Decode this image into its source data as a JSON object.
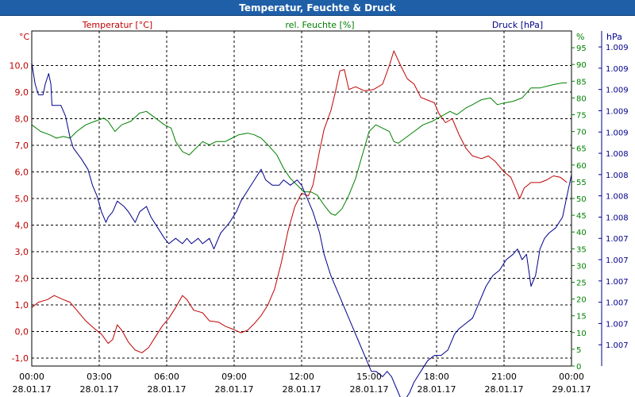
{
  "window": {
    "title": "Temperatur, Feuchte & Druck"
  },
  "chart_data": {
    "type": "line",
    "title": "Temperatur, Feuchte & Druck",
    "x_ticks": [
      {
        "time": "00:00",
        "date": "28.01.17",
        "hour": 0
      },
      {
        "time": "03:00",
        "date": "28.01.17",
        "hour": 3
      },
      {
        "time": "06:00",
        "date": "28.01.17",
        "hour": 6
      },
      {
        "time": "09:00",
        "date": "28.01.17",
        "hour": 9
      },
      {
        "time": "12:00",
        "date": "28.01.17",
        "hour": 12
      },
      {
        "time": "15:00",
        "date": "28.01.17",
        "hour": 15
      },
      {
        "time": "18:00",
        "date": "28.01.17",
        "hour": 18
      },
      {
        "time": "21:00",
        "date": "28.01.17",
        "hour": 21
      },
      {
        "time": "00:00",
        "date": "29.01.17",
        "hour": 24
      }
    ],
    "x_range": [
      0,
      24
    ],
    "axes": {
      "temperature": {
        "label": "Temperatur [°C]",
        "unit": "°C",
        "color": "#c00000",
        "range": [
          -1.3,
          11.3
        ],
        "ticks": [
          "-1,0",
          "0,0",
          "1,0",
          "2,0",
          "3,0",
          "4,0",
          "5,0",
          "6,0",
          "7,0",
          "8,0",
          "9,0",
          "10,0"
        ],
        "tick_values": [
          -1,
          0,
          1,
          2,
          3,
          4,
          5,
          6,
          7,
          8,
          9,
          10
        ]
      },
      "humidity": {
        "label": "rel. Feuchte [%]",
        "unit": "%",
        "color": "#008000",
        "range": [
          0,
          100
        ],
        "ticks": [
          "0",
          "5",
          "10",
          "15",
          "20",
          "25",
          "30",
          "35",
          "40",
          "45",
          "50",
          "55",
          "60",
          "65",
          "70",
          "75",
          "80",
          "85",
          "90",
          "95"
        ],
        "tick_values": [
          0,
          5,
          10,
          15,
          20,
          25,
          30,
          35,
          40,
          45,
          50,
          55,
          60,
          65,
          70,
          75,
          80,
          85,
          90,
          95
        ]
      },
      "pressure": {
        "label": "Druck [hPa]",
        "unit": "hPa",
        "color": "#00008b",
        "range": [
          1006.45,
          1009.6
        ],
        "ticks": [
          "1.007",
          "1.007",
          "1.007",
          "1.007",
          "1.007",
          "1.007",
          "1.008",
          "1.008",
          "1.008",
          "1.008",
          "1.009",
          "1.009",
          "1.009",
          "1.009",
          "1.009"
        ],
        "tick_values": [
          1006.65,
          1006.85,
          1007.05,
          1007.25,
          1007.45,
          1007.65,
          1007.85,
          1008.05,
          1008.25,
          1008.45,
          1008.65,
          1008.85,
          1009.05,
          1009.25,
          1009.45
        ]
      }
    },
    "series": [
      {
        "name": "Temperatur",
        "axis": "temperature",
        "color": "#c00000",
        "points": [
          [
            0,
            0.9
          ],
          [
            0.3,
            1.1
          ],
          [
            0.7,
            1.2
          ],
          [
            1.0,
            1.35
          ],
          [
            1.4,
            1.2
          ],
          [
            1.7,
            1.1
          ],
          [
            2.0,
            0.8
          ],
          [
            2.4,
            0.4
          ],
          [
            2.8,
            0.1
          ],
          [
            3.1,
            -0.1
          ],
          [
            3.4,
            -0.45
          ],
          [
            3.6,
            -0.3
          ],
          [
            3.8,
            0.25
          ],
          [
            4.0,
            0.05
          ],
          [
            4.3,
            -0.4
          ],
          [
            4.6,
            -0.7
          ],
          [
            4.9,
            -0.8
          ],
          [
            5.2,
            -0.6
          ],
          [
            5.5,
            -0.2
          ],
          [
            5.8,
            0.2
          ],
          [
            6.1,
            0.5
          ],
          [
            6.4,
            0.9
          ],
          [
            6.7,
            1.35
          ],
          [
            6.9,
            1.2
          ],
          [
            7.2,
            0.8
          ],
          [
            7.6,
            0.7
          ],
          [
            7.9,
            0.4
          ],
          [
            8.3,
            0.35
          ],
          [
            8.6,
            0.2
          ],
          [
            8.9,
            0.1
          ],
          [
            9.3,
            -0.05
          ],
          [
            9.6,
            0.05
          ],
          [
            9.9,
            0.3
          ],
          [
            10.2,
            0.6
          ],
          [
            10.5,
            1.0
          ],
          [
            10.8,
            1.6
          ],
          [
            11.1,
            2.6
          ],
          [
            11.4,
            3.8
          ],
          [
            11.7,
            4.7
          ],
          [
            12.0,
            5.2
          ],
          [
            12.3,
            5.1
          ],
          [
            12.5,
            5.5
          ],
          [
            12.8,
            6.8
          ],
          [
            13.0,
            7.6
          ],
          [
            13.3,
            8.3
          ],
          [
            13.5,
            9.0
          ],
          [
            13.7,
            9.8
          ],
          [
            13.9,
            9.85
          ],
          [
            14.1,
            9.1
          ],
          [
            14.4,
            9.2
          ],
          [
            14.8,
            9.05
          ],
          [
            15.2,
            9.1
          ],
          [
            15.6,
            9.3
          ],
          [
            15.9,
            10.0
          ],
          [
            16.1,
            10.55
          ],
          [
            16.4,
            10.0
          ],
          [
            16.7,
            9.5
          ],
          [
            17.0,
            9.3
          ],
          [
            17.3,
            8.8
          ],
          [
            17.6,
            8.7
          ],
          [
            17.9,
            8.6
          ],
          [
            18.1,
            8.2
          ],
          [
            18.4,
            7.85
          ],
          [
            18.7,
            8.0
          ],
          [
            19.0,
            7.4
          ],
          [
            19.3,
            6.9
          ],
          [
            19.6,
            6.6
          ],
          [
            20.0,
            6.5
          ],
          [
            20.3,
            6.6
          ],
          [
            20.6,
            6.4
          ],
          [
            21.0,
            6.0
          ],
          [
            21.3,
            5.8
          ],
          [
            21.5,
            5.4
          ],
          [
            21.7,
            5.0
          ],
          [
            21.9,
            5.4
          ],
          [
            22.2,
            5.6
          ],
          [
            22.6,
            5.6
          ],
          [
            22.9,
            5.7
          ],
          [
            23.2,
            5.85
          ],
          [
            23.5,
            5.8
          ],
          [
            23.8,
            5.6
          ]
        ]
      },
      {
        "name": "rel. Feuchte",
        "axis": "humidity",
        "color": "#008000",
        "points": [
          [
            0,
            72
          ],
          [
            0.4,
            70
          ],
          [
            0.8,
            69
          ],
          [
            1.1,
            68
          ],
          [
            1.4,
            68.5
          ],
          [
            1.7,
            68
          ],
          [
            2.0,
            70
          ],
          [
            2.4,
            72
          ],
          [
            2.8,
            73
          ],
          [
            3.2,
            74
          ],
          [
            3.4,
            73
          ],
          [
            3.7,
            70
          ],
          [
            4.0,
            72
          ],
          [
            4.4,
            73
          ],
          [
            4.8,
            75.5
          ],
          [
            5.1,
            76
          ],
          [
            5.5,
            74
          ],
          [
            5.9,
            72
          ],
          [
            6.2,
            71
          ],
          [
            6.4,
            67
          ],
          [
            6.7,
            64
          ],
          [
            7.0,
            63
          ],
          [
            7.3,
            65
          ],
          [
            7.6,
            67
          ],
          [
            7.9,
            66
          ],
          [
            8.2,
            67
          ],
          [
            8.6,
            67
          ],
          [
            8.9,
            68
          ],
          [
            9.2,
            69
          ],
          [
            9.6,
            69.5
          ],
          [
            9.9,
            69
          ],
          [
            10.2,
            68
          ],
          [
            10.5,
            66
          ],
          [
            10.9,
            63
          ],
          [
            11.2,
            59
          ],
          [
            11.5,
            56
          ],
          [
            11.8,
            54
          ],
          [
            12.1,
            52
          ],
          [
            12.4,
            52
          ],
          [
            12.7,
            51
          ],
          [
            13.0,
            48
          ],
          [
            13.3,
            45.5
          ],
          [
            13.5,
            45
          ],
          [
            13.8,
            47
          ],
          [
            14.1,
            51
          ],
          [
            14.4,
            56
          ],
          [
            14.7,
            63
          ],
          [
            15.0,
            70
          ],
          [
            15.3,
            72
          ],
          [
            15.6,
            71
          ],
          [
            15.9,
            70
          ],
          [
            16.1,
            67
          ],
          [
            16.3,
            66.5
          ],
          [
            16.6,
            68
          ],
          [
            17.0,
            70
          ],
          [
            17.4,
            72
          ],
          [
            17.8,
            73
          ],
          [
            18.2,
            74.5
          ],
          [
            18.6,
            76
          ],
          [
            18.9,
            75
          ],
          [
            19.3,
            77
          ],
          [
            19.6,
            78
          ],
          [
            20.0,
            79.5
          ],
          [
            20.4,
            80
          ],
          [
            20.7,
            78
          ],
          [
            21.0,
            78.5
          ],
          [
            21.4,
            79
          ],
          [
            21.8,
            80
          ],
          [
            22.2,
            83
          ],
          [
            22.6,
            83
          ],
          [
            22.9,
            83.5
          ],
          [
            23.2,
            84
          ],
          [
            23.6,
            84.5
          ],
          [
            23.8,
            84.5
          ]
        ]
      },
      {
        "name": "Druck",
        "axis": "pressure",
        "color": "#00008b",
        "points": [
          [
            0,
            1009.3
          ],
          [
            0.15,
            1009.1
          ],
          [
            0.3,
            1009.0
          ],
          [
            0.5,
            1009.0
          ],
          [
            0.6,
            1009.1
          ],
          [
            0.75,
            1009.2
          ],
          [
            0.85,
            1009.1
          ],
          [
            0.9,
            1008.9
          ],
          [
            1.3,
            1008.9
          ],
          [
            1.5,
            1008.8
          ],
          [
            1.7,
            1008.6
          ],
          [
            1.85,
            1008.5
          ],
          [
            2.2,
            1008.4
          ],
          [
            2.5,
            1008.3
          ],
          [
            2.7,
            1008.15
          ],
          [
            2.9,
            1008.05
          ],
          [
            3.1,
            1007.9
          ],
          [
            3.3,
            1007.8
          ],
          [
            3.4,
            1007.85
          ],
          [
            3.6,
            1007.9
          ],
          [
            3.8,
            1008.0
          ],
          [
            4.1,
            1007.95
          ],
          [
            4.3,
            1007.9
          ],
          [
            4.6,
            1007.8
          ],
          [
            4.8,
            1007.9
          ],
          [
            5.1,
            1007.95
          ],
          [
            5.3,
            1007.85
          ],
          [
            5.6,
            1007.75
          ],
          [
            5.9,
            1007.65
          ],
          [
            6.1,
            1007.6
          ],
          [
            6.4,
            1007.65
          ],
          [
            6.7,
            1007.6
          ],
          [
            6.9,
            1007.65
          ],
          [
            7.1,
            1007.6
          ],
          [
            7.4,
            1007.65
          ],
          [
            7.6,
            1007.6
          ],
          [
            7.9,
            1007.65
          ],
          [
            8.1,
            1007.55
          ],
          [
            8.4,
            1007.7
          ],
          [
            8.6,
            1007.75
          ],
          [
            8.8,
            1007.8
          ],
          [
            9.1,
            1007.9
          ],
          [
            9.3,
            1008.0
          ],
          [
            9.6,
            1008.1
          ],
          [
            9.9,
            1008.2
          ],
          [
            10.2,
            1008.3
          ],
          [
            10.4,
            1008.2
          ],
          [
            10.7,
            1008.15
          ],
          [
            11.0,
            1008.15
          ],
          [
            11.2,
            1008.2
          ],
          [
            11.5,
            1008.15
          ],
          [
            11.8,
            1008.2
          ],
          [
            12.0,
            1008.15
          ],
          [
            12.3,
            1008.0
          ],
          [
            12.5,
            1007.9
          ],
          [
            12.8,
            1007.7
          ],
          [
            13.0,
            1007.5
          ],
          [
            13.3,
            1007.3
          ],
          [
            13.6,
            1007.15
          ],
          [
            13.9,
            1007.0
          ],
          [
            14.2,
            1006.85
          ],
          [
            14.5,
            1006.7
          ],
          [
            14.8,
            1006.55
          ],
          [
            15.1,
            1006.4
          ],
          [
            15.3,
            1006.4
          ],
          [
            15.6,
            1006.35
          ],
          [
            15.8,
            1006.4
          ],
          [
            16.0,
            1006.35
          ],
          [
            16.3,
            1006.2
          ],
          [
            16.5,
            1006.1
          ],
          [
            16.8,
            1006.2
          ],
          [
            17.0,
            1006.3
          ],
          [
            17.3,
            1006.4
          ],
          [
            17.6,
            1006.5
          ],
          [
            17.9,
            1006.55
          ],
          [
            18.2,
            1006.55
          ],
          [
            18.5,
            1006.6
          ],
          [
            18.8,
            1006.75
          ],
          [
            19.0,
            1006.8
          ],
          [
            19.3,
            1006.85
          ],
          [
            19.6,
            1006.9
          ],
          [
            19.9,
            1007.05
          ],
          [
            20.2,
            1007.2
          ],
          [
            20.5,
            1007.3
          ],
          [
            20.8,
            1007.35
          ],
          [
            21.1,
            1007.45
          ],
          [
            21.4,
            1007.5
          ],
          [
            21.6,
            1007.55
          ],
          [
            21.8,
            1007.45
          ],
          [
            22.0,
            1007.5
          ],
          [
            22.2,
            1007.2
          ],
          [
            22.4,
            1007.3
          ],
          [
            22.6,
            1007.55
          ],
          [
            22.8,
            1007.65
          ],
          [
            23.0,
            1007.7
          ],
          [
            23.3,
            1007.75
          ],
          [
            23.6,
            1007.85
          ],
          [
            23.8,
            1008.05
          ],
          [
            24.0,
            1008.25
          ]
        ]
      }
    ],
    "grid": true
  }
}
